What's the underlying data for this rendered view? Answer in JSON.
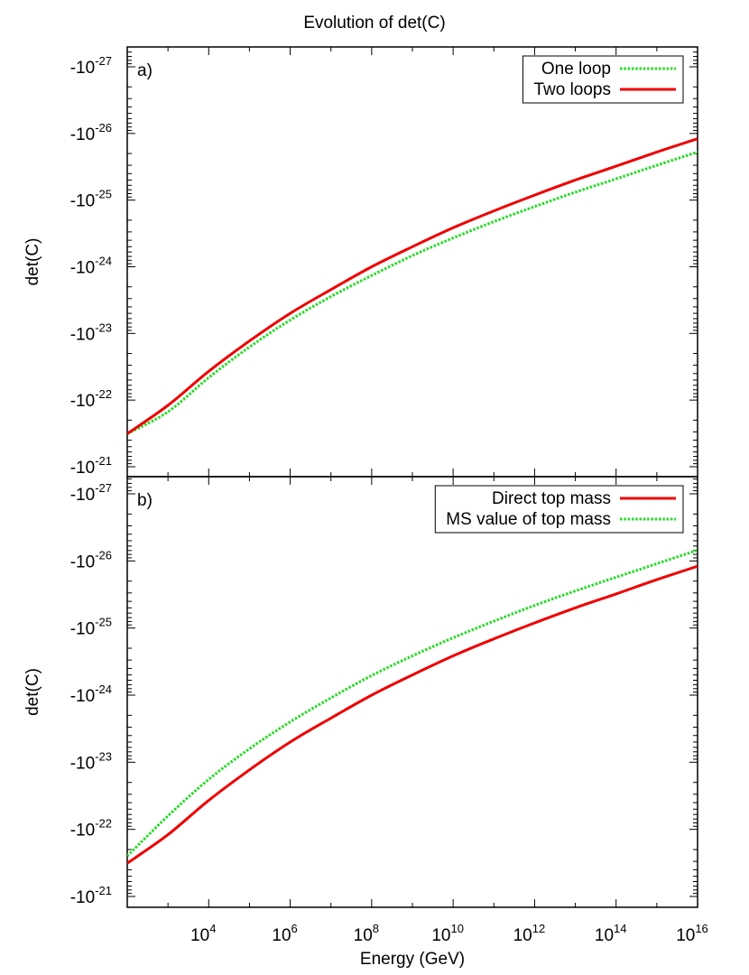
{
  "title": "Evolution of det(C)",
  "colors": {
    "one_loop": "#22dd22",
    "two_loops": "#ee0000",
    "frame": "#000000"
  },
  "chart_data": [
    {
      "type": "line",
      "panel_label": "a)",
      "xlabel": "",
      "ylabel": "det(C)",
      "x_scale": "log",
      "y_scale": "log (negative values)",
      "xlim": [
        100,
        1e+16
      ],
      "ylim": [
        -1e-21,
        -1e-27
      ],
      "y_ticks": [
        {
          "base": "-10",
          "exp": "-27"
        },
        {
          "base": "-10",
          "exp": "-26"
        },
        {
          "base": "-10",
          "exp": "-25"
        },
        {
          "base": "-10",
          "exp": "-24"
        },
        {
          "base": "-10",
          "exp": "-23"
        },
        {
          "base": "-10",
          "exp": "-22"
        },
        {
          "base": "-10",
          "exp": "-21"
        }
      ],
      "legend_position": "top-right",
      "series": [
        {
          "name": "One loop",
          "style": "dotted",
          "color": "#22dd22",
          "x": [
            100,
            1000.0,
            10000.0,
            100000.0,
            1000000.0,
            10000000.0,
            100000000.0,
            1000000000.0,
            10000000000.0,
            100000000000.0,
            1000000000000.0,
            10000000000000.0,
            100000000000000.0,
            1000000000000000.0,
            1e+16
          ],
          "y": [
            -3.2e-22,
            -1.5e-22,
            -4.6e-23,
            -1.6e-23,
            -6.3e-24,
            -2.8e-24,
            -1.35e-24,
            -6.8e-25,
            -3.7e-25,
            -2.1e-25,
            -1.25e-25,
            -7.6e-26,
            -4.8e-26,
            -3e-26,
            -1.9e-26
          ]
        },
        {
          "name": "Two loops",
          "style": "solid",
          "color": "#ee0000",
          "x": [
            100,
            1000.0,
            10000.0,
            100000.0,
            1000000.0,
            10000000.0,
            100000000.0,
            1000000000.0,
            10000000000.0,
            100000000000.0,
            1000000000000.0,
            10000000000000.0,
            100000000000000.0,
            1000000000000000.0,
            1e+16
          ],
          "y": [
            -3.2e-22,
            -1.2e-22,
            -3.7e-23,
            -1.3e-23,
            -5e-24,
            -2.2e-24,
            -1e-24,
            -5e-25,
            -2.6e-25,
            -1.45e-25,
            -8.4e-26,
            -5e-26,
            -3.1e-26,
            -1.9e-26,
            -1.2e-26
          ]
        }
      ]
    },
    {
      "type": "line",
      "panel_label": "b)",
      "xlabel": "Energy (GeV)",
      "ylabel": "det(C)",
      "x_scale": "log",
      "y_scale": "log (negative values)",
      "xlim": [
        100,
        1e+16
      ],
      "ylim": [
        -1e-21,
        -1e-27
      ],
      "x_ticks": [
        {
          "base": "10",
          "exp": "4"
        },
        {
          "base": "10",
          "exp": "6"
        },
        {
          "base": "10",
          "exp": "8"
        },
        {
          "base": "10",
          "exp": "10"
        },
        {
          "base": "10",
          "exp": "12"
        },
        {
          "base": "10",
          "exp": "14"
        },
        {
          "base": "10",
          "exp": "16"
        }
      ],
      "y_ticks": [
        {
          "base": "-10",
          "exp": "-27"
        },
        {
          "base": "-10",
          "exp": "-26"
        },
        {
          "base": "-10",
          "exp": "-25"
        },
        {
          "base": "-10",
          "exp": "-24"
        },
        {
          "base": "-10",
          "exp": "-23"
        },
        {
          "base": "-10",
          "exp": "-22"
        },
        {
          "base": "-10",
          "exp": "-21"
        }
      ],
      "legend_position": "top-right",
      "series": [
        {
          "name": "Direct top mass",
          "style": "solid",
          "color": "#ee0000",
          "x": [
            100,
            1000.0,
            10000.0,
            100000.0,
            1000000.0,
            10000000.0,
            100000000.0,
            1000000000.0,
            10000000000.0,
            100000000000.0,
            1000000000000.0,
            10000000000000.0,
            100000000000000.0,
            1000000000000000.0,
            1e+16
          ],
          "y": [
            -3.2e-22,
            -1.2e-22,
            -3.7e-23,
            -1.3e-23,
            -5e-24,
            -2.2e-24,
            -1e-24,
            -5e-25,
            -2.6e-25,
            -1.45e-25,
            -8.4e-26,
            -5e-26,
            -3.1e-26,
            -1.9e-26,
            -1.2e-26
          ]
        },
        {
          "name": "MS value of top mass",
          "style": "dotted",
          "color": "#22dd22",
          "x": [
            100,
            1000.0,
            10000.0,
            100000.0,
            1000000.0,
            10000000.0,
            100000000.0,
            1000000000.0,
            10000000000.0,
            100000000000.0,
            1000000000000.0,
            10000000000000.0,
            100000000000000.0,
            1000000000000000.0,
            1e+16
          ],
          "y": [
            -2.5e-22,
            -6.3e-23,
            -1.8e-23,
            -6.3e-24,
            -2.5e-24,
            -1.1e-24,
            -5.1e-25,
            -2.6e-25,
            -1.4e-25,
            -7.9e-26,
            -4.6e-26,
            -2.8e-26,
            -1.75e-26,
            -1.1e-26,
            -6.9e-27
          ]
        }
      ]
    }
  ]
}
